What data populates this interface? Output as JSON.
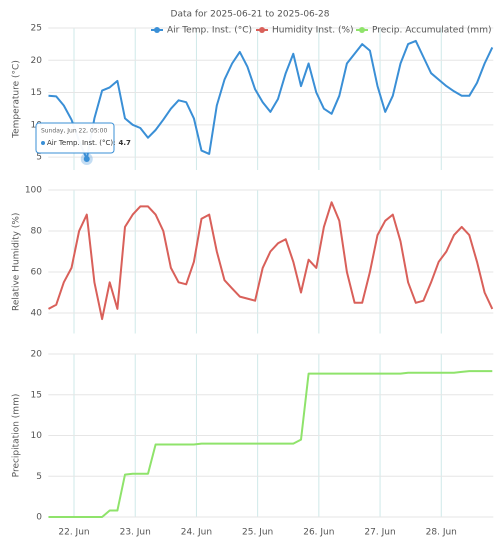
{
  "chart_data": {
    "type": "line",
    "title": "Data for 2025-06-21 to 2025-06-28",
    "xlim": [
      21.58,
      28.85
    ],
    "xticks": [
      {
        "value": 22,
        "label": "22. Jun"
      },
      {
        "value": 23,
        "label": "23. Jun"
      },
      {
        "value": 24,
        "label": "24. Jun"
      },
      {
        "value": 25,
        "label": "25. Jun"
      },
      {
        "value": 26,
        "label": "26. Jun"
      },
      {
        "value": 27,
        "label": "27. Jun"
      },
      {
        "value": 28,
        "label": "28. Jun"
      }
    ],
    "x": [
      21.5833,
      21.7083,
      21.8333,
      21.9583,
      22.0833,
      22.2083,
      22.3333,
      22.4583,
      22.5833,
      22.7083,
      22.8333,
      22.9583,
      23.0833,
      23.2083,
      23.3333,
      23.4583,
      23.5833,
      23.7083,
      23.8333,
      23.9583,
      24.0833,
      24.2083,
      24.3333,
      24.4583,
      24.5833,
      24.7083,
      24.8333,
      24.9583,
      25.0833,
      25.2083,
      25.3333,
      25.4583,
      25.5833,
      25.7083,
      25.8333,
      25.9583,
      26.0833,
      26.2083,
      26.3333,
      26.4583,
      26.5833,
      26.7083,
      26.8333,
      26.9583,
      27.0833,
      27.2083,
      27.3333,
      27.4583,
      27.5833,
      27.7083,
      27.8333,
      27.9583,
      28.0833,
      28.2083,
      28.3333,
      28.4583,
      28.5833,
      28.7083,
      28.8333
    ],
    "grid": true,
    "panels": [
      {
        "ylabel": "Temperature (°C)",
        "ylim": [
          3,
          25
        ],
        "yticks": [
          5,
          10,
          15,
          20,
          25
        ],
        "series": [
          {
            "name": "Air Temp. Inst. (°C)",
            "color": "#3a8fd6",
            "values": [
              14.5,
              14.4,
              13,
              10.8,
              7.5,
              4.7,
              11,
              15.3,
              15.8,
              16.8,
              11,
              10,
              9.5,
              8,
              9.2,
              10.8,
              12.5,
              13.8,
              13.5,
              11,
              6,
              5.5,
              13,
              17,
              19.5,
              21.3,
              19,
              15.5,
              13.5,
              12,
              14,
              18,
              21,
              16,
              19.5,
              15,
              12.5,
              11.7,
              14.5,
              19.5,
              21,
              22.5,
              21.5,
              16,
              12,
              14.5,
              19.5,
              22.5,
              23,
              20.5,
              18,
              17,
              16,
              15.2,
              14.5,
              14.5,
              16.5,
              19.5,
              22
            ]
          }
        ]
      },
      {
        "ylabel": "Relative Humidity (%)",
        "ylim": [
          30,
          100
        ],
        "yticks": [
          40,
          60,
          80,
          100
        ],
        "series": [
          {
            "name": "Humidity Inst. (%)",
            "color": "#d9605a",
            "values": [
              42,
              44,
              55,
              62,
              80,
              88,
              55,
              37,
              55,
              42,
              82,
              88,
              92,
              92,
              88,
              80,
              62,
              55,
              54,
              65,
              86,
              88,
              70,
              56,
              52,
              48,
              47,
              46,
              62,
              70,
              74,
              76,
              65,
              50,
              66,
              62,
              82,
              94,
              85,
              60,
              45,
              45,
              60,
              78,
              85,
              88,
              75,
              55,
              45,
              46,
              55,
              65,
              70,
              78,
              82,
              78,
              65,
              50,
              42
            ]
          }
        ]
      },
      {
        "ylabel": "Precipitation (mm)",
        "ylim": [
          0,
          20
        ],
        "yticks": [
          0,
          5,
          10,
          15,
          20
        ],
        "series": [
          {
            "name": "Precip. Accumulated (mm)",
            "color": "#8fe36b",
            "values": [
              0,
              0,
              0,
              0,
              0,
              0,
              0,
              0,
              0.8,
              0.8,
              5.2,
              5.3,
              5.3,
              5.3,
              8.9,
              8.9,
              8.9,
              8.9,
              8.9,
              8.9,
              9,
              9,
              9,
              9,
              9,
              9,
              9,
              9,
              9,
              9,
              9,
              9,
              9,
              9.5,
              17.6,
              17.6,
              17.6,
              17.6,
              17.6,
              17.6,
              17.6,
              17.6,
              17.6,
              17.6,
              17.6,
              17.6,
              17.6,
              17.7,
              17.7,
              17.7,
              17.7,
              17.7,
              17.7,
              17.7,
              17.8,
              17.9,
              17.9,
              17.9,
              17.9
            ]
          }
        ]
      }
    ],
    "tooltip": {
      "header": "Sunday, Jun 22, 05:00",
      "label": "Air Temp. Inst. (°C):"
    }
  }
}
